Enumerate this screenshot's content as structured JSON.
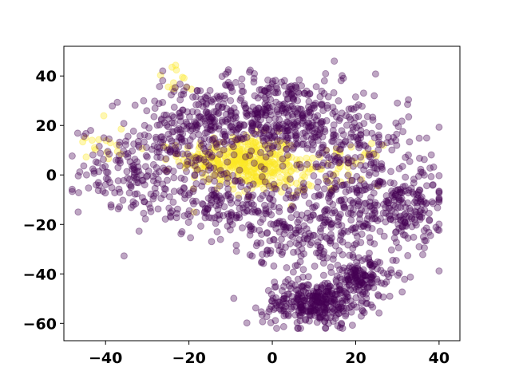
{
  "chart_data": {
    "type": "scatter",
    "title": "",
    "xlabel": "",
    "ylabel": "",
    "xlim": [
      -50,
      45
    ],
    "ylim": [
      -67,
      52
    ],
    "xticks": [
      -40,
      -20,
      0,
      20,
      40
    ],
    "yticks": [
      -60,
      -40,
      -20,
      0,
      20,
      40
    ],
    "xtick_labels": [
      "−40",
      "−20",
      "0",
      "20",
      "40"
    ],
    "ytick_labels": [
      "−60",
      "−40",
      "−20",
      "0",
      "20",
      "40"
    ],
    "grid": false,
    "legend": "none",
    "marker_alpha": 0.35,
    "colors": {
      "class_0": "#440154",
      "class_1": "#fde725"
    },
    "clusters": [
      {
        "label": 0,
        "cx": -32,
        "cy": 2,
        "sx": 7,
        "sy": 9,
        "n": 180
      },
      {
        "label": 0,
        "cx": -18,
        "cy": 18,
        "sx": 8,
        "sy": 10,
        "n": 220
      },
      {
        "label": 0,
        "cx": 0,
        "cy": 25,
        "sx": 9,
        "sy": 8,
        "n": 320
      },
      {
        "label": 0,
        "cx": 15,
        "cy": 15,
        "sx": 9,
        "sy": 10,
        "n": 220
      },
      {
        "label": 0,
        "cx": 25,
        "cy": -10,
        "sx": 8,
        "sy": 10,
        "n": 260
      },
      {
        "label": 0,
        "cx": -10,
        "cy": -12,
        "sx": 9,
        "sy": 7,
        "n": 200
      },
      {
        "label": 0,
        "cx": 10,
        "cy": -25,
        "sx": 8,
        "sy": 7,
        "n": 160
      },
      {
        "label": 0,
        "cx": 10,
        "cy": -52,
        "sx": 6,
        "sy": 4.5,
        "n": 320
      },
      {
        "label": 0,
        "cx": 21,
        "cy": -42,
        "sx": 4,
        "sy": 4,
        "n": 150
      },
      {
        "label": 0,
        "cx": 34,
        "cy": -15,
        "sx": 4,
        "sy": 7,
        "n": 70
      },
      {
        "label": 1,
        "cx": -8,
        "cy": 6,
        "sx": 7,
        "sy": 5,
        "n": 330
      },
      {
        "label": 1,
        "cx": 0,
        "cy": -1,
        "sx": 5,
        "sy": 4,
        "n": 90
      },
      {
        "label": 1,
        "cx": 18,
        "cy": 4,
        "sx": 4,
        "sy": 4,
        "n": 40
      },
      {
        "label": 1,
        "cx": -22,
        "cy": 38,
        "sx": 3,
        "sy": 3,
        "n": 12
      },
      {
        "label": 1,
        "cx": -40,
        "cy": 12,
        "sx": 5,
        "sy": 6,
        "n": 16
      }
    ]
  }
}
